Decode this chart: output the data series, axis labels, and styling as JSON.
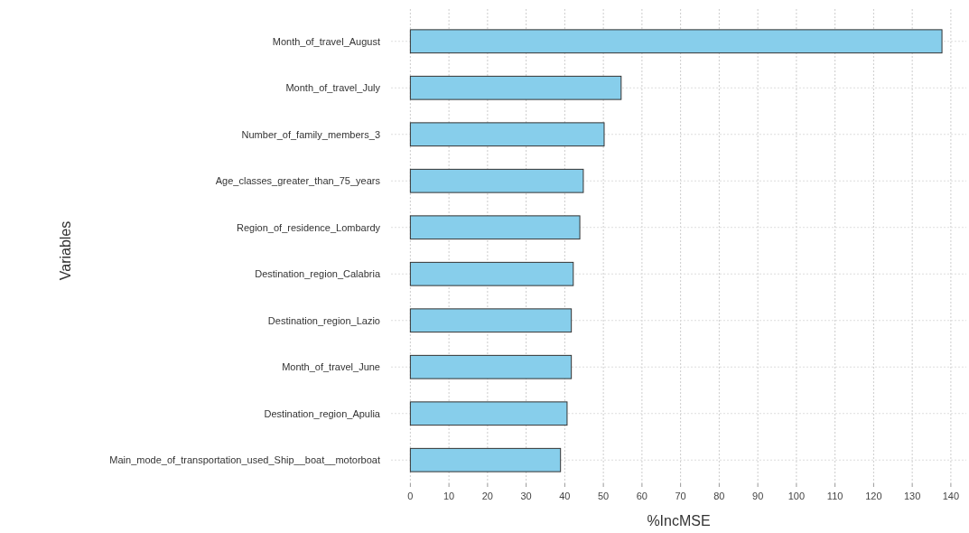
{
  "chart_data": {
    "type": "bar",
    "orientation": "horizontal",
    "xlabel": "%IncMSE",
    "ylabel": "Variables",
    "categories": [
      "Month_of_travel_August",
      "Month_of_travel_July",
      "Number_of_family_members_3",
      "Age_classes_greater_than_75_years",
      "Region_of_residence_Lombardy",
      "Destination_region_Calabria",
      "Destination_region_Lazio",
      "Month_of_travel_June",
      "Destination_region_Apulia",
      "Main_mode_of_transportation_used_Ship__boat__motorboat"
    ],
    "values": [
      137.7,
      54.6,
      50.2,
      44.8,
      43.9,
      42.2,
      41.7,
      41.7,
      40.6,
      38.9
    ],
    "color": "#87ceeb",
    "xlim": [
      -5,
      144
    ],
    "xticks": [
      0,
      10,
      20,
      30,
      40,
      50,
      60,
      70,
      80,
      90,
      100,
      110,
      120,
      130,
      140
    ],
    "grid": true
  }
}
